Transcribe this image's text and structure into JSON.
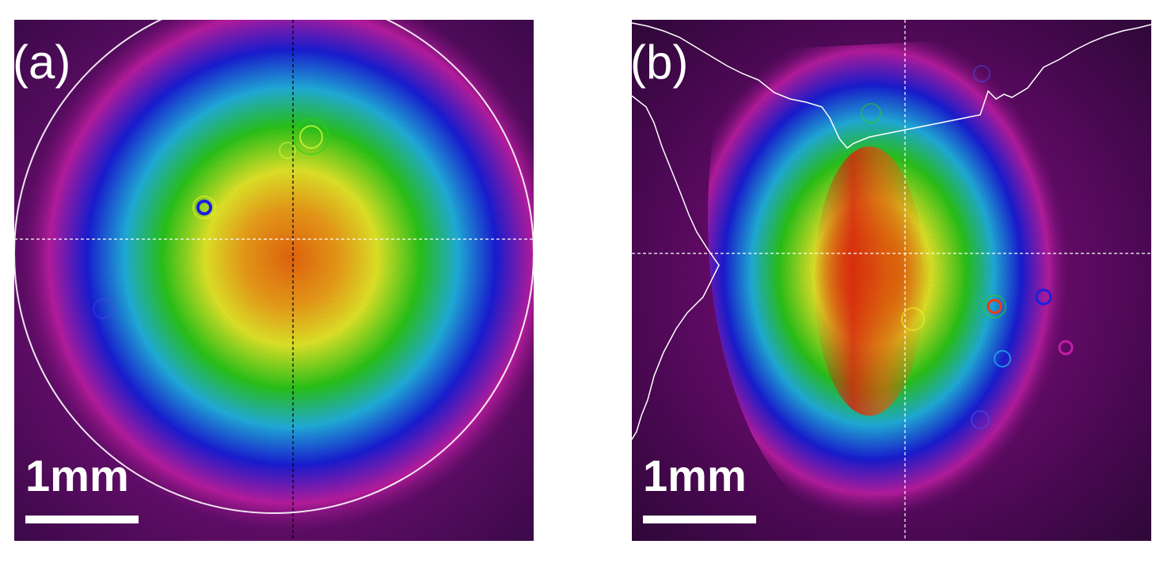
{
  "panels": [
    {
      "label": "(a)",
      "scale_text": "1mm",
      "description_colors": {
        "background": "#3a0a4a",
        "outer": "#c21ea8",
        "ring_blue": "#1a1ee0",
        "ring_cyan": "#22b8e8",
        "green": "#2ccf1a",
        "yellow": "#eef22a",
        "core": "#f47a10"
      }
    },
    {
      "label": "(b)",
      "scale_text": "1mm",
      "description_colors": {
        "background": "#2c0838",
        "outer": "#c21ea8",
        "ring_blue": "#1a1ee0",
        "ring_cyan": "#22b8e8",
        "green": "#2ccf1a",
        "yellow": "#eef22a",
        "core": "#ee3a10"
      }
    }
  ]
}
